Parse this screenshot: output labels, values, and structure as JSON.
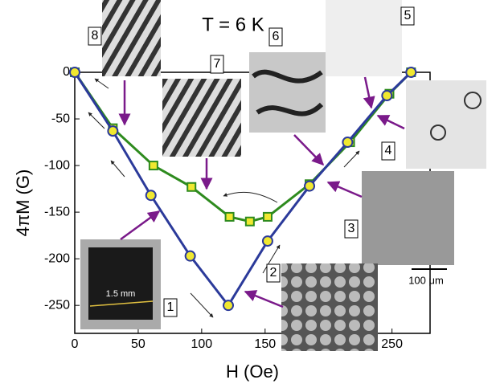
{
  "chart_data": {
    "type": "line",
    "x_label": "H (Oe)",
    "y_label": "4πM (G)",
    "xlim": [
      0,
      280
    ],
    "ylim": [
      -280,
      0
    ],
    "xticks": [
      0,
      50,
      100,
      150,
      200,
      250
    ],
    "yticks": [
      -250,
      -200,
      -150,
      -100,
      -50,
      0
    ],
    "series": [
      {
        "color": "#2b3a9a",
        "marker": "circle",
        "x": [
          0,
          30,
          60,
          91,
          121,
          152,
          185,
          215,
          246,
          265
        ],
        "values": [
          0,
          -63,
          -132,
          -197,
          -250,
          -181,
          -122,
          -75,
          -25,
          0
        ]
      },
      {
        "color": "#2e8b1e",
        "marker": "square",
        "x": [
          0,
          30,
          62,
          92,
          122,
          138,
          152,
          185,
          217,
          248,
          265
        ],
        "values": [
          0,
          -60,
          -100,
          -123,
          -155,
          -160,
          -155,
          -120,
          -75,
          -23,
          0
        ]
      }
    ],
    "annotations": [
      "T = 6 K",
      "8",
      "7",
      "6",
      "5",
      "4",
      "3",
      "2",
      "1",
      "1.5 mm",
      "100 μm"
    ]
  }
}
